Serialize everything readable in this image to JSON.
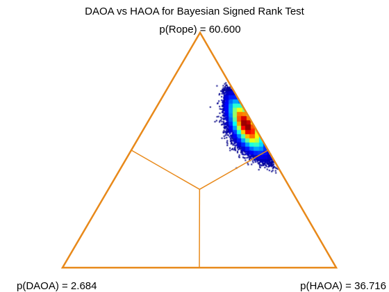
{
  "chart_data": {
    "type": "scatter",
    "title": "DAOA vs HAOA for Bayesian Signed Rank Test",
    "vertices": {
      "top": "p(Rope) = 60.600",
      "bottom_left": "p(DAOA) = 2.684",
      "bottom_right": "p(HAOA) = 36.716"
    },
    "probabilities": {
      "rope": 60.6,
      "daoa": 2.684,
      "haoa": 36.716
    },
    "frame_color": "#e8891a",
    "density_colormap": "jet",
    "sample_count": 60000
  }
}
